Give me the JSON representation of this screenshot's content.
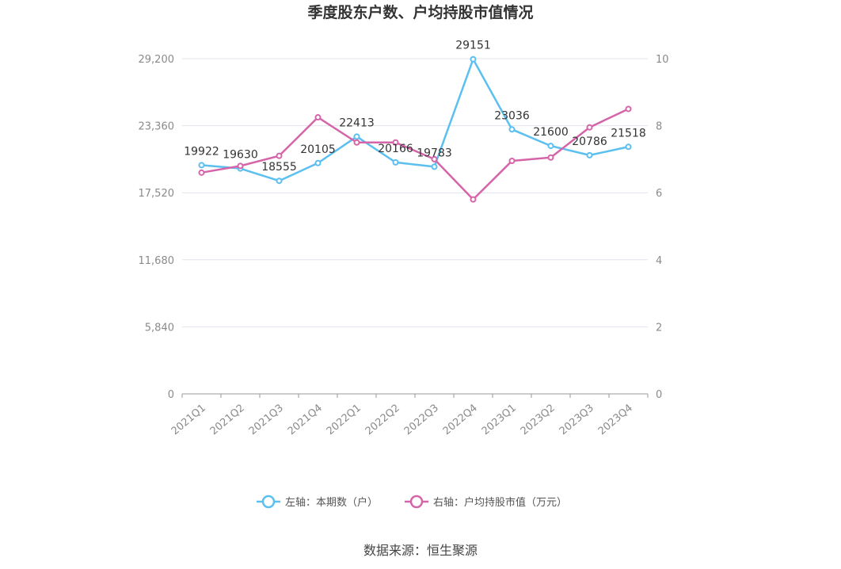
{
  "title": "季度股东户数、户均持股市值情况",
  "source": "数据来源：恒生聚源",
  "colors": {
    "left": "#5bbff0",
    "right": "#d565a9",
    "grid": "#e3e3ee",
    "axis": "#999999"
  },
  "chart_data": {
    "type": "line",
    "categories": [
      "2021Q1",
      "2021Q2",
      "2021Q3",
      "2021Q4",
      "2022Q1",
      "2022Q2",
      "2022Q3",
      "2022Q4",
      "2023Q1",
      "2023Q2",
      "2023Q3",
      "2023Q4"
    ],
    "y_left": {
      "ticks": [
        "0",
        "5,840",
        "11,680",
        "17,520",
        "23,360",
        "29,200"
      ],
      "tick_values": [
        0,
        5840,
        11680,
        17520,
        23360,
        29200
      ],
      "lim": [
        0,
        29200
      ]
    },
    "y_right": {
      "ticks": [
        "0",
        "2",
        "4",
        "6",
        "8",
        "10"
      ],
      "tick_values": [
        0,
        2,
        4,
        6,
        8,
        10
      ],
      "lim": [
        0,
        10
      ]
    },
    "series": [
      {
        "name": "左轴：本期数（户）",
        "axis": "left",
        "values": [
          19922,
          19630,
          18555,
          20105,
          22413,
          20166,
          19783,
          29151,
          23036,
          21600,
          20786,
          21518
        ],
        "labels": [
          "19922",
          "19630",
          "18555",
          "20105",
          "22413",
          "20166",
          "19783",
          "29151",
          "23036",
          "21600",
          "20786",
          "21518"
        ]
      },
      {
        "name": "右轴：户均持股市值（万元）",
        "axis": "right",
        "values": [
          6.6,
          6.8,
          7.1,
          8.25,
          7.5,
          7.5,
          7.0,
          5.8,
          6.95,
          7.05,
          7.95,
          8.5
        ]
      }
    ],
    "grid": true,
    "legend_position": "bottom"
  }
}
